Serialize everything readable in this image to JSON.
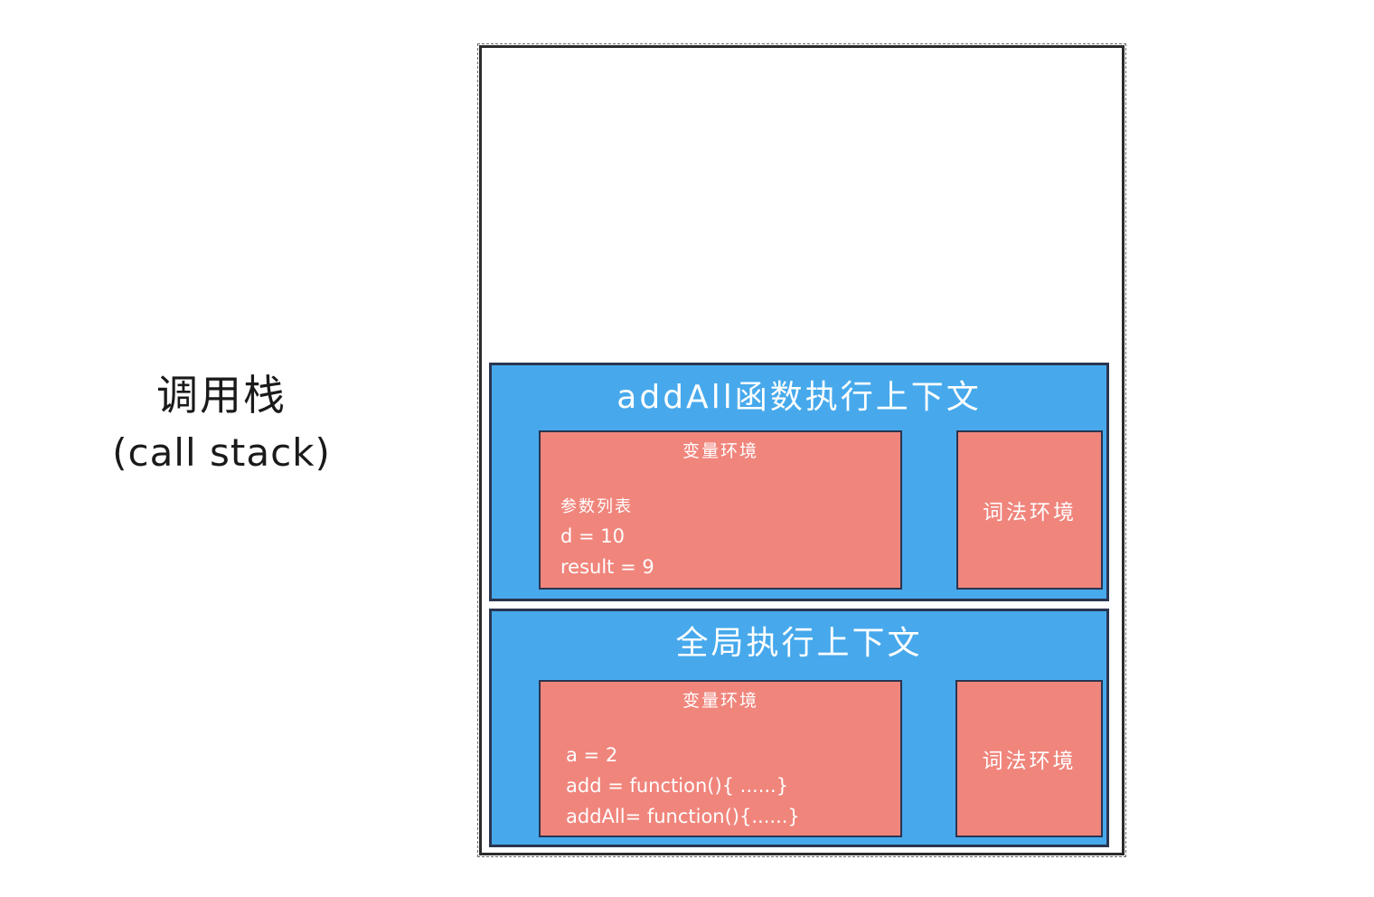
{
  "label": {
    "title": "调用栈",
    "subtitle": "(call stack)"
  },
  "contexts": [
    {
      "title": "addAll函数执行上下文",
      "variable_env": {
        "title": "变量环境",
        "lines": [
          "参数列表",
          "d = 10",
          "result = 9"
        ]
      },
      "lexical_env": {
        "title": "词法环境"
      }
    },
    {
      "title": "全局执行上下文",
      "variable_env": {
        "title": "变量环境",
        "lines": [
          "a = 2",
          "add = function(){ ......}",
          "addAll= function(){......}"
        ]
      },
      "lexical_env": {
        "title": "词法环境"
      }
    }
  ],
  "colors": {
    "context_fill": "#47a9ec",
    "env_fill": "#f0857c",
    "border": "#2a3550"
  }
}
